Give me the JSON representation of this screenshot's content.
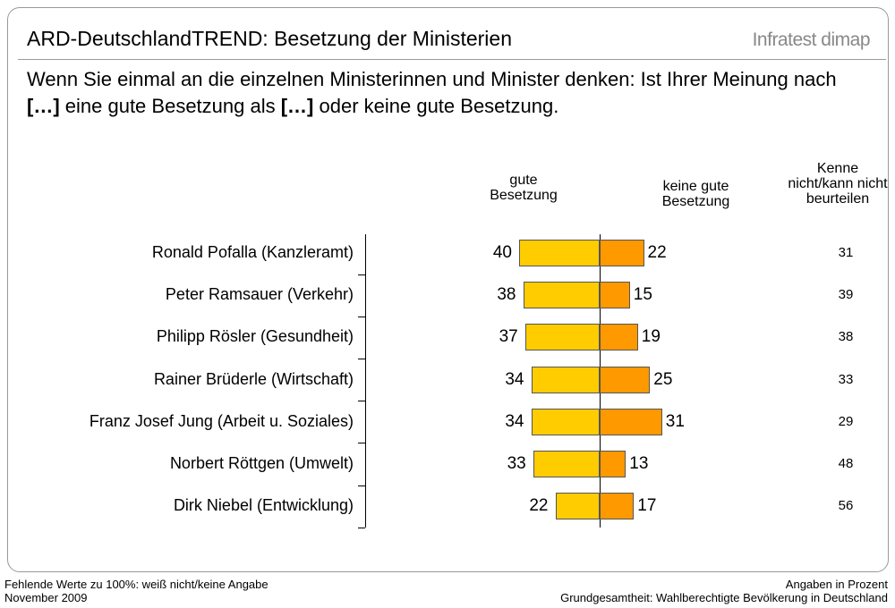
{
  "title": "ARD-DeutschlandTREND: Besetzung der Ministerien",
  "brand": "Infratest dimap",
  "subtitle": [
    "Wenn Sie einmal an die einzelnen Ministerinnen und Minister denken: Ist Ihrer Meinung nach ",
    "[…]",
    " eine gute Besetzung als ",
    "[…]",
    " oder keine gute Besetzung."
  ],
  "chart_data": {
    "type": "diverging_bar",
    "categories": [
      "Ronald Pofalla (Kanzleramt)",
      "Peter Ramsauer (Verkehr)",
      "Philipp Rösler (Gesundheit)",
      "Rainer Brüderle (Wirtschaft)",
      "Franz Josef Jung (Arbeit u. Soziales)",
      "Norbert Röttgen (Umwelt)",
      "Dirk Niebel (Entwicklung)"
    ],
    "series": [
      {
        "name": "gute Besetzung",
        "color": "#ffcc00",
        "values": [
          40,
          38,
          37,
          34,
          34,
          33,
          22
        ]
      },
      {
        "name": "keine gute Besetzung",
        "color": "#ff9900",
        "values": [
          22,
          15,
          19,
          25,
          31,
          13,
          17
        ]
      },
      {
        "name": "Kenne nicht/kann nicht beurteilen",
        "values": [
          31,
          39,
          38,
          33,
          29,
          48,
          56
        ]
      }
    ]
  },
  "footer": {
    "left": [
      "Fehlende Werte zu 100%: weiß nicht/keine Angabe",
      "November 2009"
    ],
    "right": [
      "Angaben in Prozent",
      "Grundgesamtheit: Wahlberechtigte Bevölkerung in Deutschland"
    ]
  }
}
